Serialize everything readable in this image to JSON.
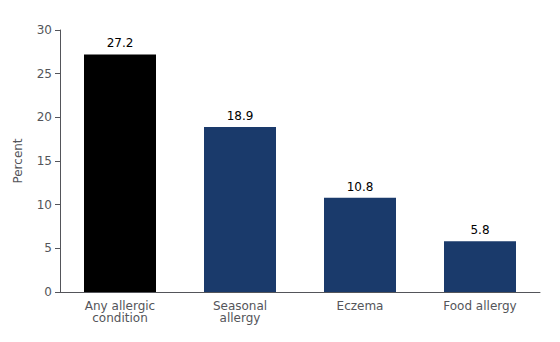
{
  "chart_data": {
    "type": "bar",
    "categories": [
      "Any allergic\ncondition",
      "Seasonal\nallergy",
      "Eczema",
      "Food allergy"
    ],
    "values": [
      27.2,
      18.9,
      10.8,
      5.8
    ],
    "colors": [
      "#000000",
      "#1a3a6b",
      "#1a3a6b",
      "#1a3a6b"
    ],
    "ylabel": "Percent",
    "ylim": [
      0,
      30
    ],
    "yticks": [
      0,
      5,
      10,
      15,
      20,
      25,
      30
    ],
    "data_labels": true,
    "grid": false
  }
}
